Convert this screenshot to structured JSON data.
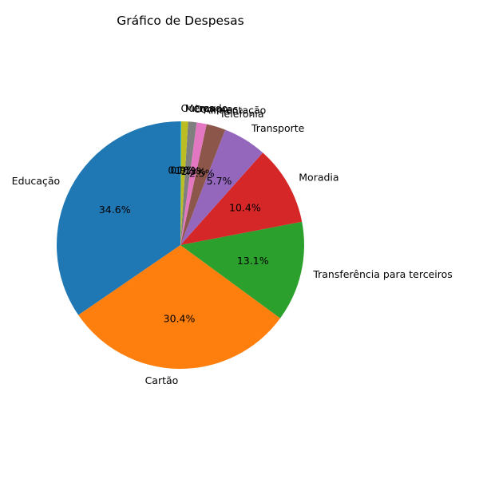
{
  "chart_data": {
    "type": "pie",
    "title": "Gráfico de Despesas",
    "start_angle_deg": 90,
    "direction": "counterclockwise",
    "slices": [
      {
        "label": "Educação",
        "value": 34.6,
        "pct_label": "34.6%",
        "color": "#1f77b4"
      },
      {
        "label": "Cartão",
        "value": 30.4,
        "pct_label": "30.4%",
        "color": "#ff7f0e"
      },
      {
        "label": "Transferência para terceiros",
        "value": 13.1,
        "pct_label": "13.1%",
        "color": "#2ca02c"
      },
      {
        "label": "Moradia",
        "value": 10.4,
        "pct_label": "10.4%",
        "color": "#d62728"
      },
      {
        "label": "Transporte",
        "value": 5.7,
        "pct_label": "5.7%",
        "color": "#9467bd"
      },
      {
        "label": "Telefonia",
        "value": 2.5,
        "pct_label": "2.5%",
        "color": "#8c564b"
      },
      {
        "label": "Alimentação",
        "value": 1.3,
        "pct_label": "1.3%",
        "color": "#e377c2"
      },
      {
        "label": "Compras",
        "value": 1.1,
        "pct_label": "1.1%",
        "color": "#7f7f7f"
      },
      {
        "label": "Mercado",
        "value": 0.9,
        "pct_label": "0.9%",
        "color": "#bcbd22"
      },
      {
        "label": "Outros",
        "value": 0.1,
        "pct_label": "0.1%",
        "color": "#17becf"
      }
    ]
  }
}
